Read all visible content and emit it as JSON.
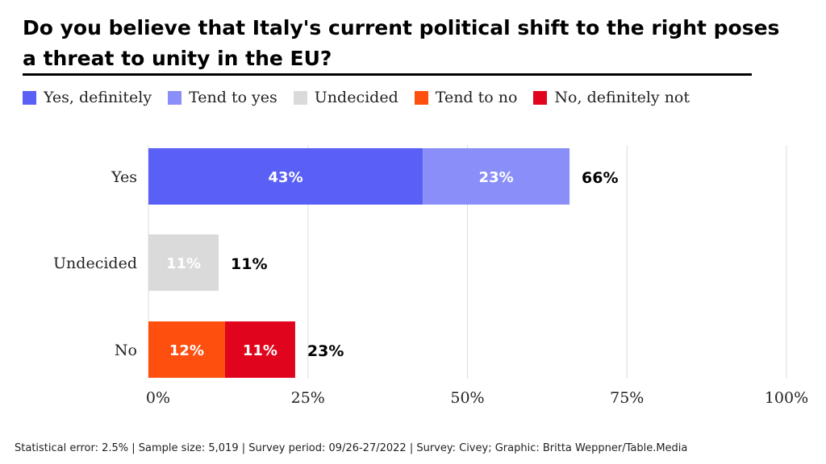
{
  "chart_data": {
    "type": "bar",
    "orientation": "horizontal",
    "stacked": true,
    "title": "Do you believe that Italy's current political shift to the right poses a threat to unity in the EU?",
    "categories": [
      "Yes",
      "Undecided",
      "No"
    ],
    "series": [
      {
        "name": "Yes, definitely",
        "color": "#5a5ff5",
        "values": [
          43,
          0,
          0
        ],
        "labels": [
          "43%",
          "",
          ""
        ]
      },
      {
        "name": "Tend to yes",
        "color": "#8a8ef8",
        "values": [
          23,
          0,
          0
        ],
        "labels": [
          "23%",
          "",
          ""
        ]
      },
      {
        "name": "Undecided",
        "color": "#dadada",
        "values": [
          0,
          11,
          0
        ],
        "labels": [
          "",
          "11%",
          ""
        ]
      },
      {
        "name": "Tend to no",
        "color": "#ff4f0f",
        "values": [
          0,
          0,
          12
        ],
        "labels": [
          "",
          "",
          "12%"
        ]
      },
      {
        "name": "No, definitely not",
        "color": "#e0051c",
        "values": [
          0,
          0,
          11
        ],
        "labels": [
          "",
          "",
          "11%"
        ]
      }
    ],
    "totals": [
      "66%",
      "11%",
      "23%"
    ],
    "xlim": [
      0,
      100
    ],
    "xticks": [
      0,
      25,
      50,
      75,
      100
    ],
    "xtick_labels": [
      "0%",
      "25%",
      "50%",
      "75%",
      "100%"
    ],
    "grid": "vertical",
    "legend": "top-left"
  },
  "footer": "Statistical error: 2.5% | Sample size: 5,019 | Survey period: 09/26-27/2022 | Survey: Civey; Graphic: Britta Weppner/Table.Media"
}
